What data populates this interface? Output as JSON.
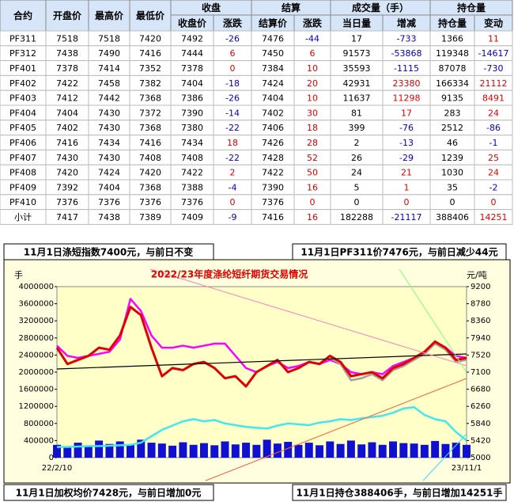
{
  "table": {
    "header_top": [
      "合约",
      "开盘价",
      "最高价",
      "最低价",
      "收盘",
      "结算",
      "成交量（手）",
      "持仓量"
    ],
    "header_sub": [
      "收盘价",
      "涨跌",
      "结算价",
      "涨跌",
      "当日量",
      "增减",
      "持仓量",
      "变动"
    ],
    "rows": [
      [
        "PF311",
        7518,
        7518,
        7420,
        7492,
        -26,
        7476,
        -44,
        17,
        -733,
        1366,
        11
      ],
      [
        "PF312",
        7438,
        7490,
        7416,
        7444,
        6,
        7450,
        6,
        91573,
        -53868,
        119348,
        -14617
      ],
      [
        "PF401",
        7378,
        7414,
        7352,
        7378,
        0,
        7384,
        10,
        35593,
        -1115,
        87078,
        -730
      ],
      [
        "PF402",
        7422,
        7458,
        7382,
        7404,
        -18,
        7424,
        20,
        42931,
        23380,
        166334,
        21112
      ],
      [
        "PF403",
        7412,
        7442,
        7368,
        7386,
        -26,
        7404,
        10,
        11637,
        11298,
        9135,
        8491
      ],
      [
        "PF404",
        7404,
        7430,
        7372,
        7390,
        -14,
        7402,
        30,
        81,
        17,
        283,
        24
      ],
      [
        "PF405",
        7402,
        7430,
        7368,
        7380,
        -22,
        7406,
        18,
        399,
        -76,
        2512,
        -86
      ],
      [
        "PF406",
        7416,
        7434,
        7416,
        7434,
        18,
        7426,
        28,
        2,
        -13,
        46,
        -1
      ],
      [
        "PF407",
        7430,
        7430,
        7408,
        7408,
        -22,
        7428,
        52,
        26,
        -29,
        1239,
        25
      ],
      [
        "PF408",
        7420,
        7424,
        7420,
        7422,
        2,
        7422,
        50,
        24,
        21,
        1030,
        24
      ],
      [
        "PF409",
        7392,
        7404,
        7368,
        7388,
        -4,
        7390,
        16,
        5,
        1,
        35,
        -2
      ],
      [
        "PF410",
        7376,
        7376,
        7376,
        7376,
        0,
        7376,
        0,
        0,
        0,
        0,
        0
      ],
      [
        "小计",
        7417,
        7438,
        7389,
        7409,
        -9,
        7416,
        16,
        182288,
        -21117,
        388406,
        14251
      ]
    ]
  },
  "notes": [
    "11月1日涤短指数7400元，与前日不变",
    "11月1日PF311价7476元，与前日减少44元",
    "11月1日加权均价7428元，与前日增加0元",
    "11月1日持仓388406手，与前日增加14251手"
  ],
  "chart_data": {
    "type": "line",
    "title": "2022/23年度涤纶短纤期货交易情况",
    "y_label": "手",
    "y2_label": "元/吨",
    "categories": [
      "22/2/10",
      null,
      null,
      null,
      null,
      null,
      null,
      null,
      null,
      null,
      null,
      null,
      null,
      null,
      null,
      null,
      null,
      null,
      null,
      null,
      null,
      null,
      null,
      null,
      null,
      null,
      null,
      null,
      null,
      null,
      null,
      null,
      null,
      null,
      null,
      null,
      null,
      null,
      null,
      "23/11/1"
    ],
    "ylim": [
      0,
      4000000
    ],
    "yticks": [
      0,
      400000,
      800000,
      1200000,
      1600000,
      2000000,
      2400000,
      2800000,
      3200000,
      3600000,
      4000000
    ],
    "y2lim": [
      5000,
      9200
    ],
    "y2ticks": [
      5000,
      5420,
      5840,
      6260,
      6680,
      7100,
      7520,
      7940,
      8360,
      8780,
      9200
    ],
    "series": [
      {
        "type": "bar",
        "color": "#1010d0",
        "values": [
          300000,
          260000,
          350000,
          280000,
          400000,
          320000,
          380000,
          300000,
          420000,
          350000,
          330000,
          280000,
          360000,
          300000,
          340000,
          290000,
          380000,
          310000,
          350000,
          300000,
          420000,
          330000,
          370000,
          300000,
          350000,
          290000,
          380000,
          320000,
          400000,
          310000,
          360000,
          300000,
          380000,
          340000,
          330000,
          300000,
          390000,
          320000,
          350000,
          300000
        ]
      },
      {
        "color": "#40e8f0",
        "values": [
          250000,
          250000,
          260000,
          270000,
          270000,
          280000,
          290000,
          300000,
          350000,
          500000,
          650000,
          750000,
          850000,
          900000,
          850000,
          880000,
          800000,
          760000,
          720000,
          700000,
          680000,
          750000,
          800000,
          780000,
          760000,
          820000,
          850000,
          900000,
          880000,
          920000,
          950000,
          980000,
          1050000,
          1150000,
          1180000,
          1000000,
          900000,
          850000,
          600000,
          400000
        ]
      },
      {
        "color": "#ff00ff",
        "axis": "y2",
        "values": [
          7750,
          7500,
          7450,
          7500,
          7550,
          7600,
          7900,
          8900,
          8600,
          8000,
          7700,
          7700,
          7750,
          7700,
          7750,
          7800,
          7800,
          7500,
          7200,
          7100,
          7250,
          7350,
          7200,
          7250,
          7350,
          7300,
          7400,
          7300,
          7100,
          7050,
          7100,
          7050,
          7250,
          7350,
          7450,
          7600,
          7800,
          7700,
          7500,
          7450
        ]
      },
      {
        "color": "#a0a0a0",
        "axis": "y2",
        "values": [
          null,
          null,
          null,
          null,
          null,
          null,
          null,
          null,
          null,
          null,
          null,
          null,
          null,
          null,
          null,
          null,
          null,
          null,
          null,
          null,
          null,
          null,
          null,
          null,
          null,
          null,
          7450,
          7300,
          6900,
          6950,
          7050,
          6900,
          7150,
          7250,
          7400,
          7550,
          7800,
          7650,
          7350,
          7400
        ]
      },
      {
        "color": "#e00000",
        "axis": "y2",
        "values": [
          7700,
          7300,
          7400,
          7500,
          7700,
          7650,
          8000,
          8700,
          8500,
          7700,
          7000,
          7200,
          7150,
          7300,
          7350,
          7200,
          6950,
          7000,
          6750,
          7100,
          7250,
          7400,
          7100,
          7200,
          7350,
          7300,
          7500,
          7350,
          7000,
          7050,
          7100,
          6950,
          7200,
          7300,
          7450,
          7600,
          7850,
          7700,
          7400,
          7450
        ]
      }
    ]
  }
}
